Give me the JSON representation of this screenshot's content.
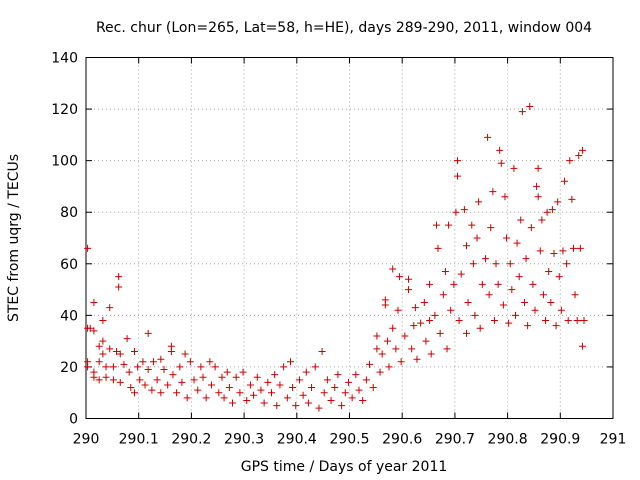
{
  "chart_data": {
    "type": "scatter",
    "title": "Rec. chur (Lon=265, Lat=58, h=HE), days 289-290, 2011, window 004",
    "xlabel": "GPS time / Days of year 2011",
    "ylabel": "STEC from uqrg / TECUs",
    "xlim": [
      290,
      291
    ],
    "ylim": [
      0,
      140
    ],
    "xticks": [
      290,
      290.1,
      290.2,
      290.3,
      290.4,
      290.5,
      290.6,
      290.7,
      290.8,
      290.9,
      291
    ],
    "xtick_labels": [
      "290",
      "290.1",
      "290.2",
      "290.3",
      "290.4",
      "290.5",
      "290.6",
      "290.7",
      "290.8",
      "290.9",
      "291"
    ],
    "yticks": [
      0,
      20,
      40,
      60,
      80,
      100,
      120,
      140
    ],
    "ytick_labels": [
      "0",
      "20",
      "40",
      "60",
      "80",
      "100",
      "120",
      "140"
    ],
    "grid": true,
    "marker": "+",
    "color": "#cc0000",
    "series": [
      {
        "points": [
          [
            290.003,
            66
          ],
          [
            290.003,
            35
          ],
          [
            290.003,
            22
          ],
          [
            290.003,
            20
          ],
          [
            290.008,
            35
          ],
          [
            290.015,
            45
          ],
          [
            290.015,
            34
          ],
          [
            290.015,
            18
          ],
          [
            290.015,
            16
          ],
          [
            290.025,
            28
          ],
          [
            290.025,
            22
          ],
          [
            290.025,
            15
          ],
          [
            290.032,
            38
          ],
          [
            290.032,
            30
          ],
          [
            290.032,
            25
          ],
          [
            290.038,
            20
          ],
          [
            290.038,
            16
          ],
          [
            290.045,
            43
          ],
          [
            290.045,
            27
          ],
          [
            290.052,
            20
          ],
          [
            290.052,
            15
          ],
          [
            290.058,
            26
          ],
          [
            290.062,
            55
          ],
          [
            290.062,
            51
          ],
          [
            290.065,
            25
          ],
          [
            290.065,
            14
          ],
          [
            290.072,
            21
          ],
          [
            290.078,
            31
          ],
          [
            290.082,
            18
          ],
          [
            290.085,
            12
          ],
          [
            290.092,
            26
          ],
          [
            290.092,
            10
          ],
          [
            290.098,
            20
          ],
          [
            290.102,
            15
          ],
          [
            290.108,
            22
          ],
          [
            290.112,
            13
          ],
          [
            290.118,
            33
          ],
          [
            290.118,
            19
          ],
          [
            290.125,
            11
          ],
          [
            290.128,
            22
          ],
          [
            290.135,
            15
          ],
          [
            290.142,
            23
          ],
          [
            290.142,
            10
          ],
          [
            290.148,
            19
          ],
          [
            290.155,
            13
          ],
          [
            290.162,
            28
          ],
          [
            290.162,
            26
          ],
          [
            290.165,
            17
          ],
          [
            290.172,
            10
          ],
          [
            290.178,
            20
          ],
          [
            290.182,
            14
          ],
          [
            290.188,
            25
          ],
          [
            290.192,
            8
          ],
          [
            290.198,
            22
          ],
          [
            290.205,
            15
          ],
          [
            290.212,
            11
          ],
          [
            290.218,
            20
          ],
          [
            290.222,
            16
          ],
          [
            290.228,
            8
          ],
          [
            290.235,
            22
          ],
          [
            290.238,
            13
          ],
          [
            290.245,
            20
          ],
          [
            290.252,
            10
          ],
          [
            290.258,
            16
          ],
          [
            290.262,
            8
          ],
          [
            290.268,
            18
          ],
          [
            290.272,
            12
          ],
          [
            290.278,
            6
          ],
          [
            290.285,
            16
          ],
          [
            290.292,
            10
          ],
          [
            290.298,
            18
          ],
          [
            290.305,
            7
          ],
          [
            290.312,
            13
          ],
          [
            290.318,
            9
          ],
          [
            290.325,
            16
          ],
          [
            290.332,
            11
          ],
          [
            290.338,
            6
          ],
          [
            290.345,
            14
          ],
          [
            290.352,
            10
          ],
          [
            290.358,
            17
          ],
          [
            290.362,
            5
          ],
          [
            290.368,
            13
          ],
          [
            290.375,
            20
          ],
          [
            290.382,
            8
          ],
          [
            290.388,
            22
          ],
          [
            290.392,
            12
          ],
          [
            290.398,
            5
          ],
          [
            290.405,
            15
          ],
          [
            290.412,
            9
          ],
          [
            290.418,
            18
          ],
          [
            290.422,
            6
          ],
          [
            290.428,
            12
          ],
          [
            290.435,
            20
          ],
          [
            290.442,
            4
          ],
          [
            290.448,
            26
          ],
          [
            290.452,
            10
          ],
          [
            290.458,
            15
          ],
          [
            290.465,
            7
          ],
          [
            290.472,
            12
          ],
          [
            290.478,
            17
          ],
          [
            290.485,
            5
          ],
          [
            290.492,
            10
          ],
          [
            290.498,
            14
          ],
          [
            290.505,
            8
          ],
          [
            290.512,
            17
          ],
          [
            290.518,
            11
          ],
          [
            290.525,
            7
          ],
          [
            290.532,
            15
          ],
          [
            290.538,
            21
          ],
          [
            290.545,
            12
          ],
          [
            290.552,
            32
          ],
          [
            290.552,
            27
          ],
          [
            290.558,
            18
          ],
          [
            290.562,
            25
          ],
          [
            290.568,
            46
          ],
          [
            290.568,
            44
          ],
          [
            290.572,
            30
          ],
          [
            290.575,
            20
          ],
          [
            290.582,
            58
          ],
          [
            290.582,
            35
          ],
          [
            290.588,
            27
          ],
          [
            290.592,
            42
          ],
          [
            290.595,
            55
          ],
          [
            290.598,
            22
          ],
          [
            290.605,
            32
          ],
          [
            290.612,
            54
          ],
          [
            290.612,
            50
          ],
          [
            290.618,
            27
          ],
          [
            290.622,
            36
          ],
          [
            290.625,
            43
          ],
          [
            290.628,
            23
          ],
          [
            290.635,
            37
          ],
          [
            290.642,
            45
          ],
          [
            290.645,
            30
          ],
          [
            290.652,
            52
          ],
          [
            290.652,
            38
          ],
          [
            290.655,
            25
          ],
          [
            290.662,
            40
          ],
          [
            290.665,
            75
          ],
          [
            290.668,
            66
          ],
          [
            290.672,
            33
          ],
          [
            290.678,
            48
          ],
          [
            290.682,
            57
          ],
          [
            290.685,
            27
          ],
          [
            290.688,
            75
          ],
          [
            290.692,
            42
          ],
          [
            290.698,
            52
          ],
          [
            290.702,
            80
          ],
          [
            290.705,
            94
          ],
          [
            290.705,
            100
          ],
          [
            290.708,
            38
          ],
          [
            290.712,
            56
          ],
          [
            290.718,
            81
          ],
          [
            290.722,
            67
          ],
          [
            290.722,
            33
          ],
          [
            290.725,
            45
          ],
          [
            290.732,
            75
          ],
          [
            290.735,
            60
          ],
          [
            290.738,
            40
          ],
          [
            290.742,
            70
          ],
          [
            290.745,
            84
          ],
          [
            290.748,
            35
          ],
          [
            290.752,
            52
          ],
          [
            290.758,
            62
          ],
          [
            290.762,
            109
          ],
          [
            290.765,
            48
          ],
          [
            290.768,
            74
          ],
          [
            290.772,
            88
          ],
          [
            290.775,
            38
          ],
          [
            290.778,
            60
          ],
          [
            290.782,
            52
          ],
          [
            290.785,
            104
          ],
          [
            290.788,
            99
          ],
          [
            290.792,
            44
          ],
          [
            290.795,
            86
          ],
          [
            290.798,
            70
          ],
          [
            290.802,
            37
          ],
          [
            290.805,
            60
          ],
          [
            290.808,
            50
          ],
          [
            290.812,
            97
          ],
          [
            290.815,
            40
          ],
          [
            290.818,
            68
          ],
          [
            290.822,
            55
          ],
          [
            290.825,
            77
          ],
          [
            290.828,
            119
          ],
          [
            290.832,
            45
          ],
          [
            290.835,
            62
          ],
          [
            290.838,
            36
          ],
          [
            290.842,
            121
          ],
          [
            290.845,
            74
          ],
          [
            290.848,
            52
          ],
          [
            290.852,
            42
          ],
          [
            290.855,
            90
          ],
          [
            290.858,
            97
          ],
          [
            290.858,
            86
          ],
          [
            290.862,
            65
          ],
          [
            290.865,
            77
          ],
          [
            290.868,
            48
          ],
          [
            290.872,
            38
          ],
          [
            290.875,
            80
          ],
          [
            290.878,
            57
          ],
          [
            290.882,
            45
          ],
          [
            290.885,
            81
          ],
          [
            290.888,
            64
          ],
          [
            290.892,
            36
          ],
          [
            290.895,
            84
          ],
          [
            290.898,
            55
          ],
          [
            290.902,
            42
          ],
          [
            290.905,
            65
          ],
          [
            290.908,
            92
          ],
          [
            290.912,
            60
          ],
          [
            290.915,
            38
          ],
          [
            290.918,
            100
          ],
          [
            290.922,
            85
          ],
          [
            290.925,
            66
          ],
          [
            290.928,
            48
          ],
          [
            290.932,
            38
          ],
          [
            290.935,
            102
          ],
          [
            290.938,
            66
          ],
          [
            290.942,
            104
          ],
          [
            290.942,
            28
          ],
          [
            290.945,
            38
          ]
        ]
      }
    ]
  }
}
